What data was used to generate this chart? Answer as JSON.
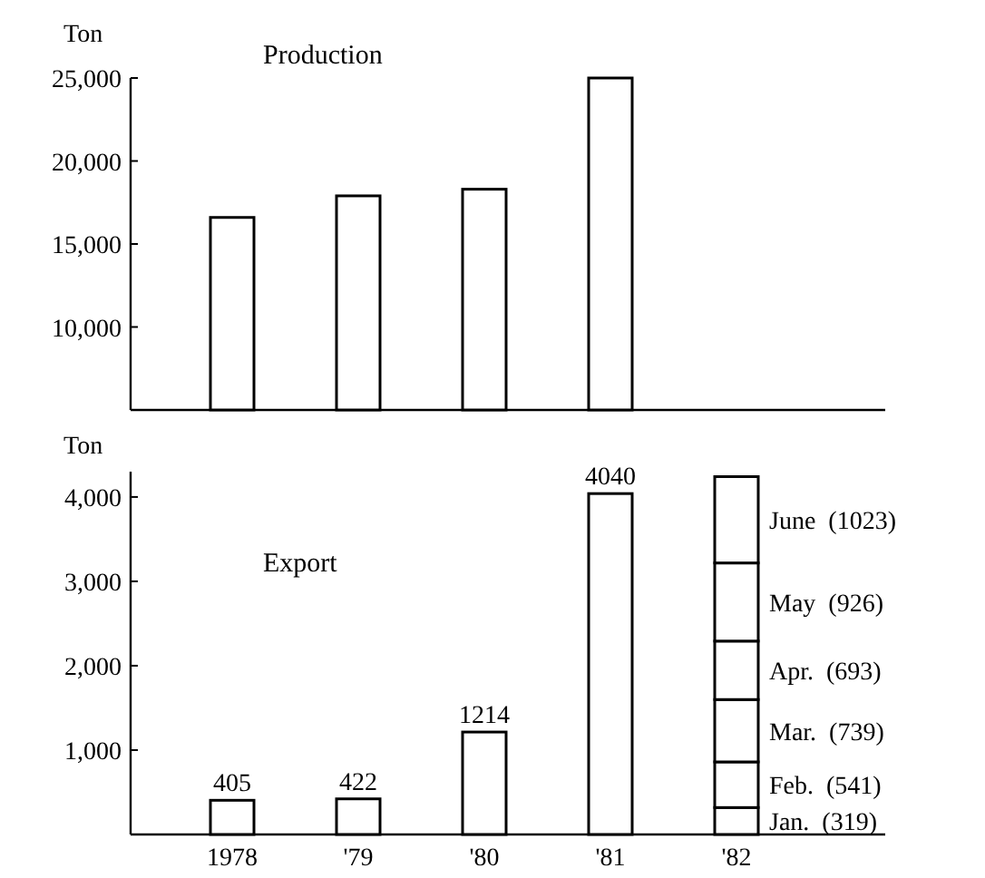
{
  "chart_data": [
    {
      "type": "bar",
      "title": "Production",
      "ylabel": "Ton",
      "categories": [
        null,
        null,
        null,
        null,
        null
      ],
      "ylim": [
        5000,
        25000
      ],
      "yticks": [
        {
          "value": 5000,
          "label": null
        },
        {
          "value": 10000,
          "label": "10,000"
        },
        {
          "value": 15000,
          "label": "15,000"
        },
        {
          "value": 20000,
          "label": "20,000"
        },
        {
          "value": 25000,
          "label": "25,000"
        }
      ],
      "tick_labels": "y",
      "series": [
        {
          "color": "#ffffff",
          "values": [
            16600,
            17900,
            18300,
            25000,
            null
          ]
        }
      ]
    },
    {
      "type": "bar",
      "title": "Export",
      "ylabel": "Ton",
      "categories": [
        "1978",
        "'79",
        "'80",
        "'81",
        "'82"
      ],
      "ylim": [
        0,
        4300
      ],
      "yticks": [
        {
          "value": 1000,
          "label": "1,000"
        },
        {
          "value": 2000,
          "label": "2,000"
        },
        {
          "value": 3000,
          "label": "3,000"
        },
        {
          "value": 4000,
          "label": "4,000"
        }
      ],
      "stacked": true,
      "series": [
        {
          "color": "#ffffff",
          "values": [
            405,
            422,
            1214,
            4040,
            null
          ],
          "value_labels": [
            "405",
            "422",
            "1214",
            "4040",
            null
          ]
        },
        {
          "name": "Jan.",
          "color": "#ffffff",
          "values": [
            null,
            null,
            null,
            null,
            319
          ],
          "value_labels": [
            null,
            null,
            null,
            null,
            "(319)"
          ]
        },
        {
          "name": "Feb.",
          "color": "#ffffff",
          "values": [
            null,
            null,
            null,
            null,
            541
          ],
          "value_labels": [
            null,
            null,
            null,
            null,
            "(541)"
          ]
        },
        {
          "name": "Mar.",
          "color": "#ffffff",
          "values": [
            null,
            null,
            null,
            null,
            739
          ],
          "value_labels": [
            null,
            null,
            null,
            null,
            "(739)"
          ]
        },
        {
          "name": "Apr.",
          "color": "#ffffff",
          "values": [
            null,
            null,
            null,
            null,
            693
          ],
          "value_labels": [
            null,
            null,
            null,
            null,
            "(693)"
          ]
        },
        {
          "name": "May",
          "color": "#ffffff",
          "values": [
            null,
            null,
            null,
            null,
            926
          ],
          "value_labels": [
            null,
            null,
            null,
            null,
            "(926)"
          ]
        },
        {
          "name": "June",
          "color": "#ffffff",
          "values": [
            null,
            null,
            null,
            null,
            1023
          ],
          "value_labels": [
            null,
            null,
            null,
            null,
            "(1023)"
          ]
        }
      ]
    }
  ]
}
